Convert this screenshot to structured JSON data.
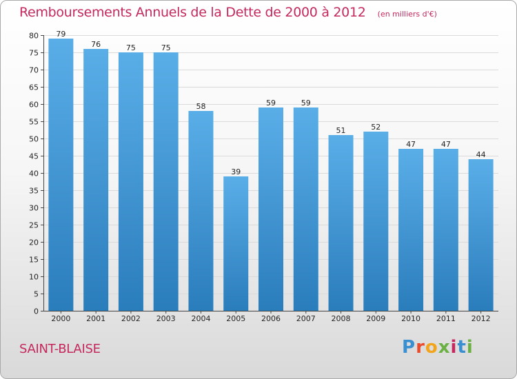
{
  "chart_data": {
    "type": "bar",
    "title": "Remboursements Annuels de la Dette de 2000 à 2012",
    "unit": "(en milliers d'€)",
    "categories": [
      "2000",
      "2001",
      "2002",
      "2003",
      "2004",
      "2005",
      "2006",
      "2007",
      "2008",
      "2009",
      "2010",
      "2011",
      "2012"
    ],
    "values": [
      79,
      76,
      75,
      75,
      58,
      39,
      59,
      59,
      51,
      52,
      47,
      47,
      44
    ],
    "ylim": [
      0,
      80
    ],
    "yticks": [
      0,
      5,
      10,
      15,
      20,
      25,
      30,
      35,
      40,
      45,
      50,
      55,
      60,
      65,
      70,
      75,
      80
    ],
    "grid": true,
    "colors": {
      "bar_top": "#5aaee8",
      "bar_bottom": "#2a7dbb",
      "title": "#c4285e"
    }
  },
  "commune": "SAINT-BLAISE",
  "logo": {
    "text": "Proxiti",
    "letters": [
      "P",
      "r",
      "o",
      "x",
      "i",
      "t",
      "i"
    ],
    "colors": [
      "#3a8fd0",
      "#e94b2c",
      "#f2a51a",
      "#6ab042",
      "#c4285e",
      "#3a8fd0",
      "#6ab042"
    ]
  }
}
